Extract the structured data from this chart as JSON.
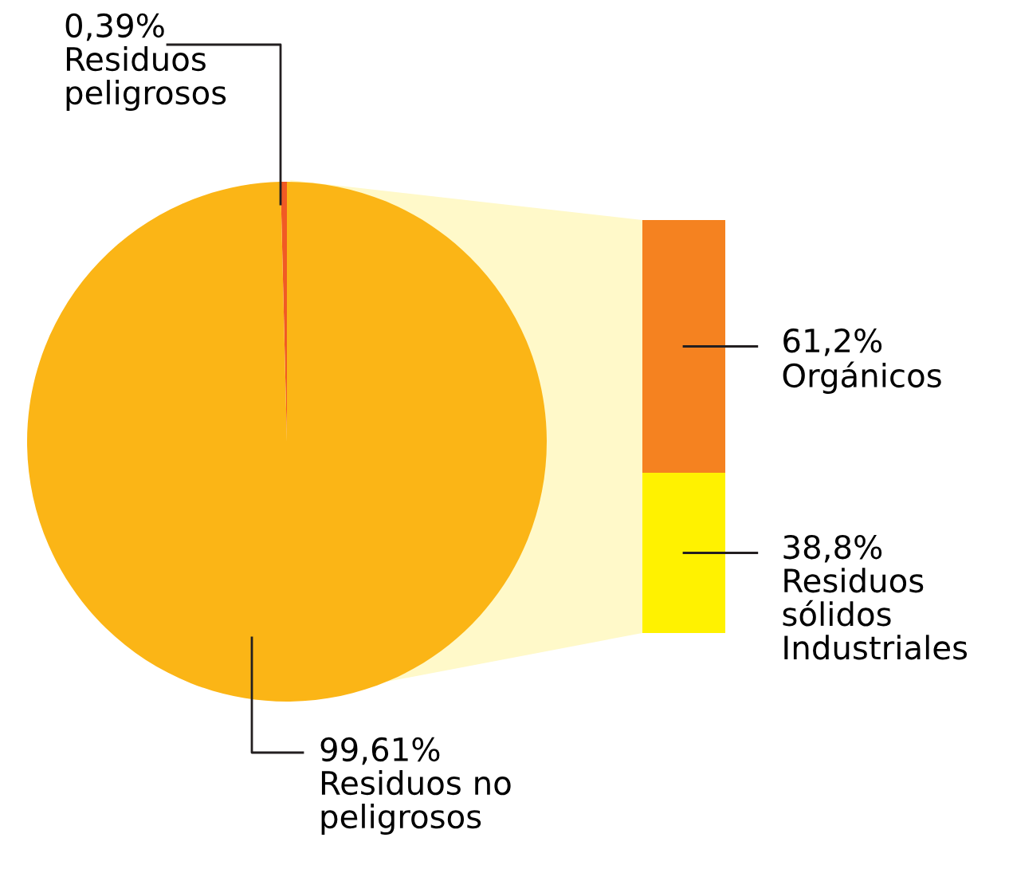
{
  "chart_data": [
    {
      "type": "pie",
      "categories": [
        "Residuos\npeligrosos",
        "Residuos no\npeligrosos"
      ],
      "values": [
        0.39,
        99.61
      ],
      "value_labels": [
        "0,39%",
        "99,61%"
      ],
      "colors": [
        "#f15a24",
        "#fbb516"
      ]
    },
    {
      "type": "bar",
      "stacked": true,
      "categories": [
        null
      ],
      "series": [
        {
          "name": "Residuos\nsólidos\nIndustriales",
          "color": "#fff200",
          "values": [
            38.8
          ],
          "value_labels": [
            "38,8%"
          ]
        },
        {
          "name": "Orgánicos",
          "color": "#f58220",
          "values": [
            61.2
          ],
          "value_labels": [
            "61,2%"
          ]
        }
      ]
    }
  ]
}
